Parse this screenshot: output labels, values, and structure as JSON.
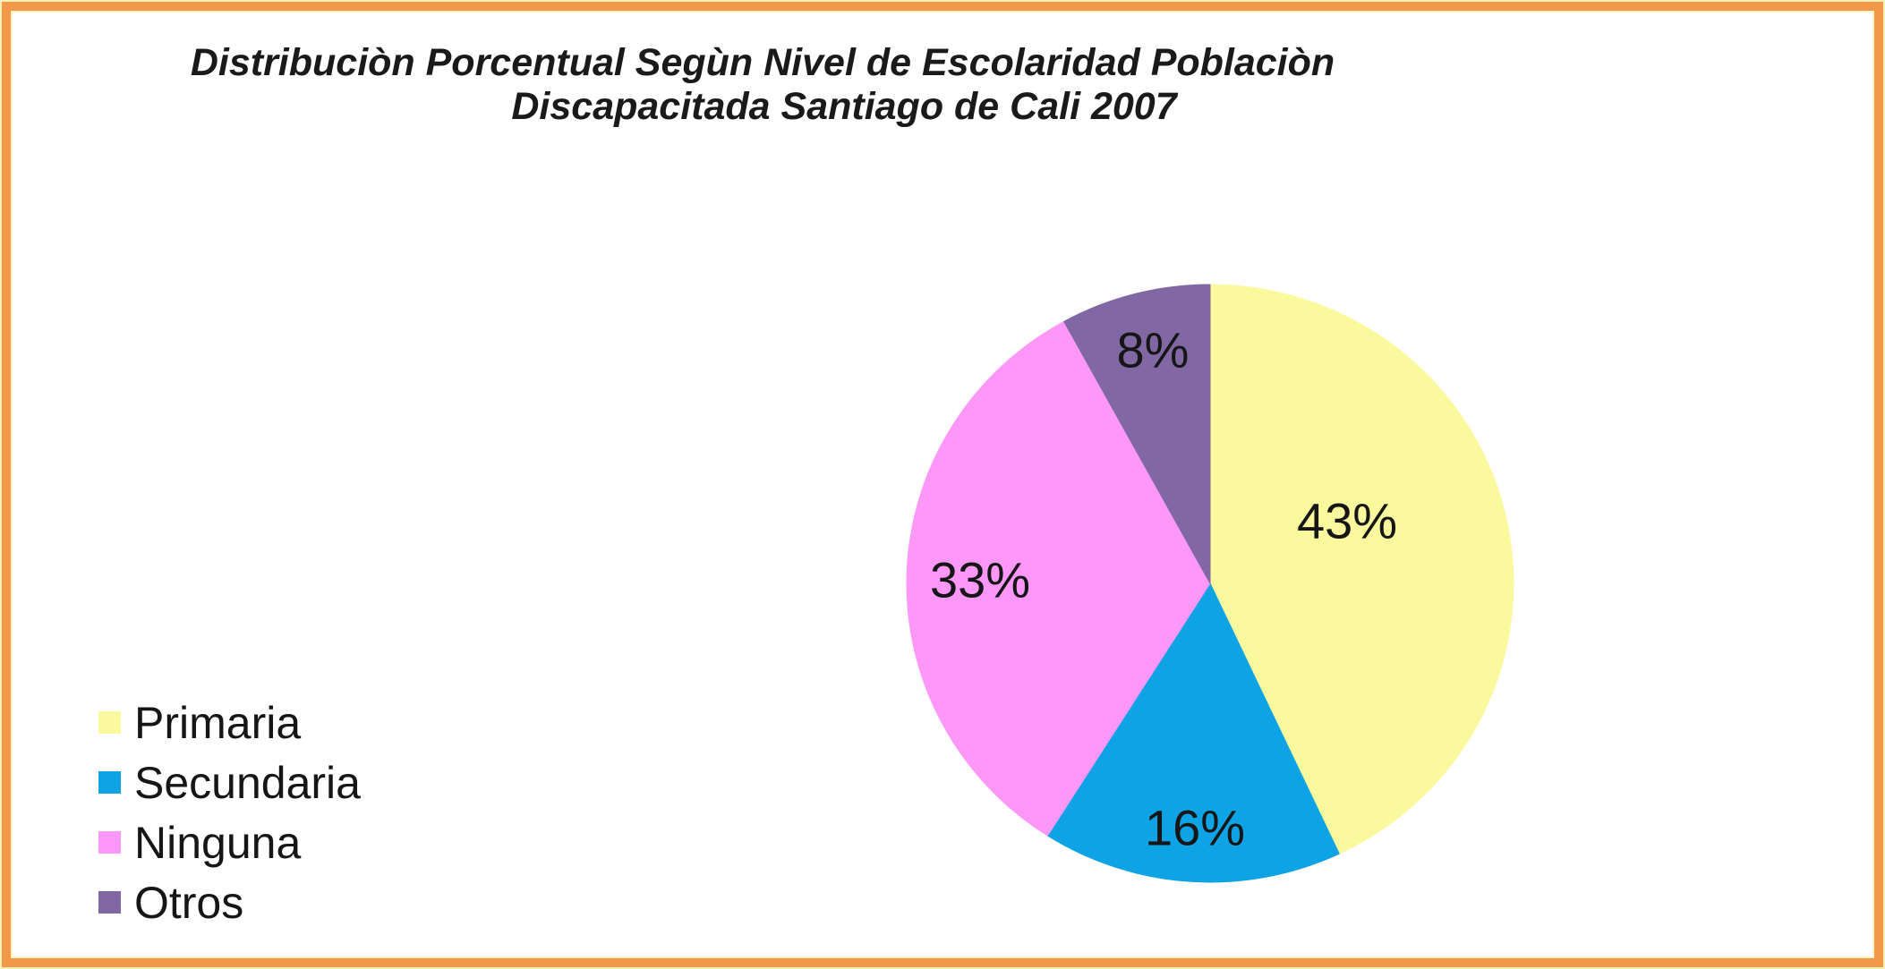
{
  "frame": {
    "border_color": "#F2984B",
    "inner_edge_color": "#FBF3C2",
    "outer_edge_color": "#F8F0B4"
  },
  "title": {
    "line1": "Distribuciòn Porcentual Segùn Nivel de Escolaridad Poblaciòn",
    "line2": "Discapacitada Santiago de Cali 2007"
  },
  "chart_data": {
    "type": "pie",
    "title": "Distribuciòn Porcentual Segùn Nivel de Escolaridad Poblaciòn Discapacitada Santiago de Cali 2007",
    "categories": [
      "Primaria",
      "Secundaria",
      "Ninguna",
      "Otros"
    ],
    "values": [
      43,
      16,
      33,
      8
    ],
    "unit": "%",
    "data_labels": [
      "43%",
      "16%",
      "33%",
      "8%"
    ],
    "colors": [
      "#FBF99E",
      "#0EA3E4",
      "#FD98F9",
      "#8168A4"
    ],
    "start_angle_deg": 0,
    "direction": "clockwise",
    "legend_position": "bottom-left",
    "label_color": "#161616"
  }
}
